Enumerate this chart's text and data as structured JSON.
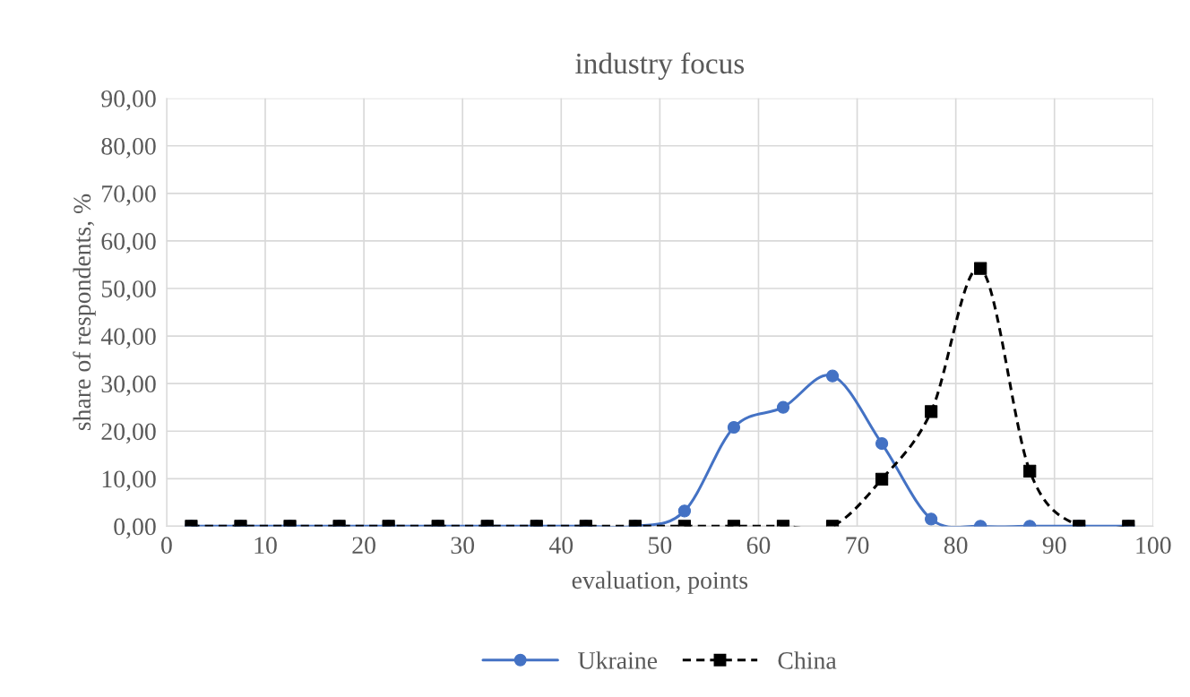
{
  "chart_data": {
    "type": "line",
    "title": "industry focus",
    "xlabel": "evaluation, points",
    "ylabel": "share of respondents, %",
    "x": [
      2.5,
      7.5,
      12.5,
      17.5,
      22.5,
      27.5,
      32.5,
      37.5,
      42.5,
      47.5,
      52.5,
      57.5,
      62.5,
      67.5,
      72.5,
      77.5,
      82.5,
      87.5,
      92.5,
      97.5
    ],
    "series": [
      {
        "name": "Ukraine",
        "color": "#4472c4",
        "marker": "circle",
        "line_style": "solid",
        "values": [
          0,
          0,
          0,
          0,
          0,
          0,
          0,
          0,
          0,
          0,
          3.2,
          20.8,
          25.0,
          31.6,
          17.4,
          1.5,
          0,
          0,
          0,
          0
        ]
      },
      {
        "name": "China",
        "color": "#000000",
        "marker": "square",
        "line_style": "dashed",
        "values": [
          0,
          0,
          0,
          0,
          0,
          0,
          0,
          0,
          0,
          0,
          0,
          0,
          0,
          0,
          9.9,
          24.1,
          54.2,
          11.6,
          0,
          0
        ]
      }
    ],
    "xlim": [
      0,
      100
    ],
    "xticks": [
      0,
      10,
      20,
      30,
      40,
      50,
      60,
      70,
      80,
      90,
      100
    ],
    "ylim": [
      0,
      90
    ],
    "yticks": [
      {
        "value": 0,
        "label": "0,00"
      },
      {
        "value": 10,
        "label": "10,00"
      },
      {
        "value": 20,
        "label": "20,00"
      },
      {
        "value": 30,
        "label": "30,00"
      },
      {
        "value": 40,
        "label": "40,00"
      },
      {
        "value": 50,
        "label": "50,00"
      },
      {
        "value": 60,
        "label": "60,00"
      },
      {
        "value": 70,
        "label": "70,00"
      },
      {
        "value": 80,
        "label": "80,00"
      },
      {
        "value": 90,
        "label": "90,00"
      }
    ],
    "grid": true,
    "legend": "bottom"
  }
}
